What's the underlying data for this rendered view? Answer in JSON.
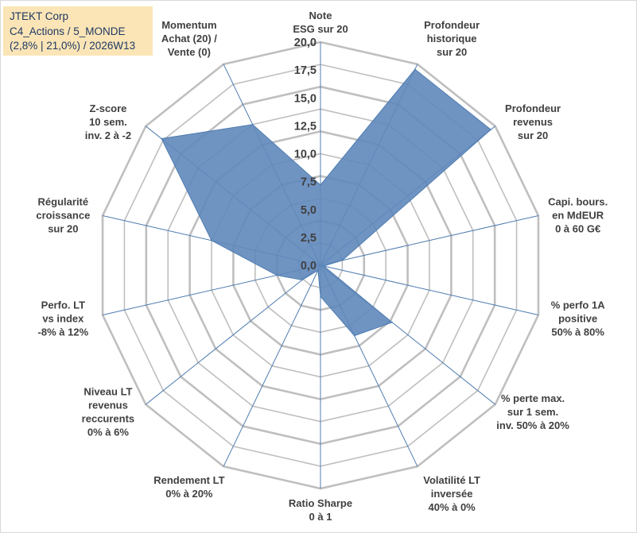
{
  "info": {
    "line1": "JTEKT Corp",
    "line2": "C4_Actions / 5_MONDE",
    "line3": "(2,8% | 21,0%) / 2026W13"
  },
  "chart_data": {
    "type": "radar",
    "rmin": 0,
    "rmax": 20,
    "ticks": [
      "0,0",
      "2,5",
      "5,0",
      "7,5",
      "10,0",
      "12,5",
      "15,0",
      "17,5",
      "20,0"
    ],
    "axes": [
      {
        "label": [
          "Note",
          "ESG sur 20"
        ]
      },
      {
        "label": [
          "Profondeur",
          "historique",
          "sur 20"
        ]
      },
      {
        "label": [
          "Profondeur",
          "revenus",
          "sur 20"
        ]
      },
      {
        "label": [
          "Capi. bours.",
          "en MdEUR",
          "0 à 60 G€"
        ]
      },
      {
        "label": [
          "% perfo 1A",
          "positive",
          "50% à 80%"
        ]
      },
      {
        "label": [
          "% perte max.",
          "sur 1 sem.",
          "inv. 50% à 20%"
        ]
      },
      {
        "label": [
          "Volatilité LT",
          "inversée",
          "40% à 0%"
        ]
      },
      {
        "label": [
          "Ratio Sharpe",
          "0 à 1"
        ]
      },
      {
        "label": [
          "Rendement LT",
          "0% à 20%"
        ]
      },
      {
        "label": [
          "Niveau LT",
          "revenus",
          "reccurents",
          "0% à 6%"
        ]
      },
      {
        "label": [
          "Perfo. LT",
          "vs index",
          "-8% à 12%"
        ]
      },
      {
        "label": [
          "Régularité",
          "croissance",
          "sur 20"
        ]
      },
      {
        "label": [
          "Z-score",
          "10 sem.",
          "inv. 2 à -2"
        ]
      },
      {
        "label": [
          "Momentum",
          "Achat (20) /",
          "Vente (0)"
        ]
      }
    ],
    "series": [
      {
        "values": [
          7.2,
          19.5,
          19.5,
          2.0,
          0.3,
          8.2,
          7.0,
          2.8,
          0.5,
          2.1,
          4.0,
          10.0,
          18.2,
          14.0
        ],
        "color": "#4f7cb0"
      }
    ],
    "colors": {
      "fill": "#5f88bb",
      "stroke": "#4f7cb0",
      "grid": "#bfbfbf",
      "spoke": "#4f7cb0"
    }
  }
}
